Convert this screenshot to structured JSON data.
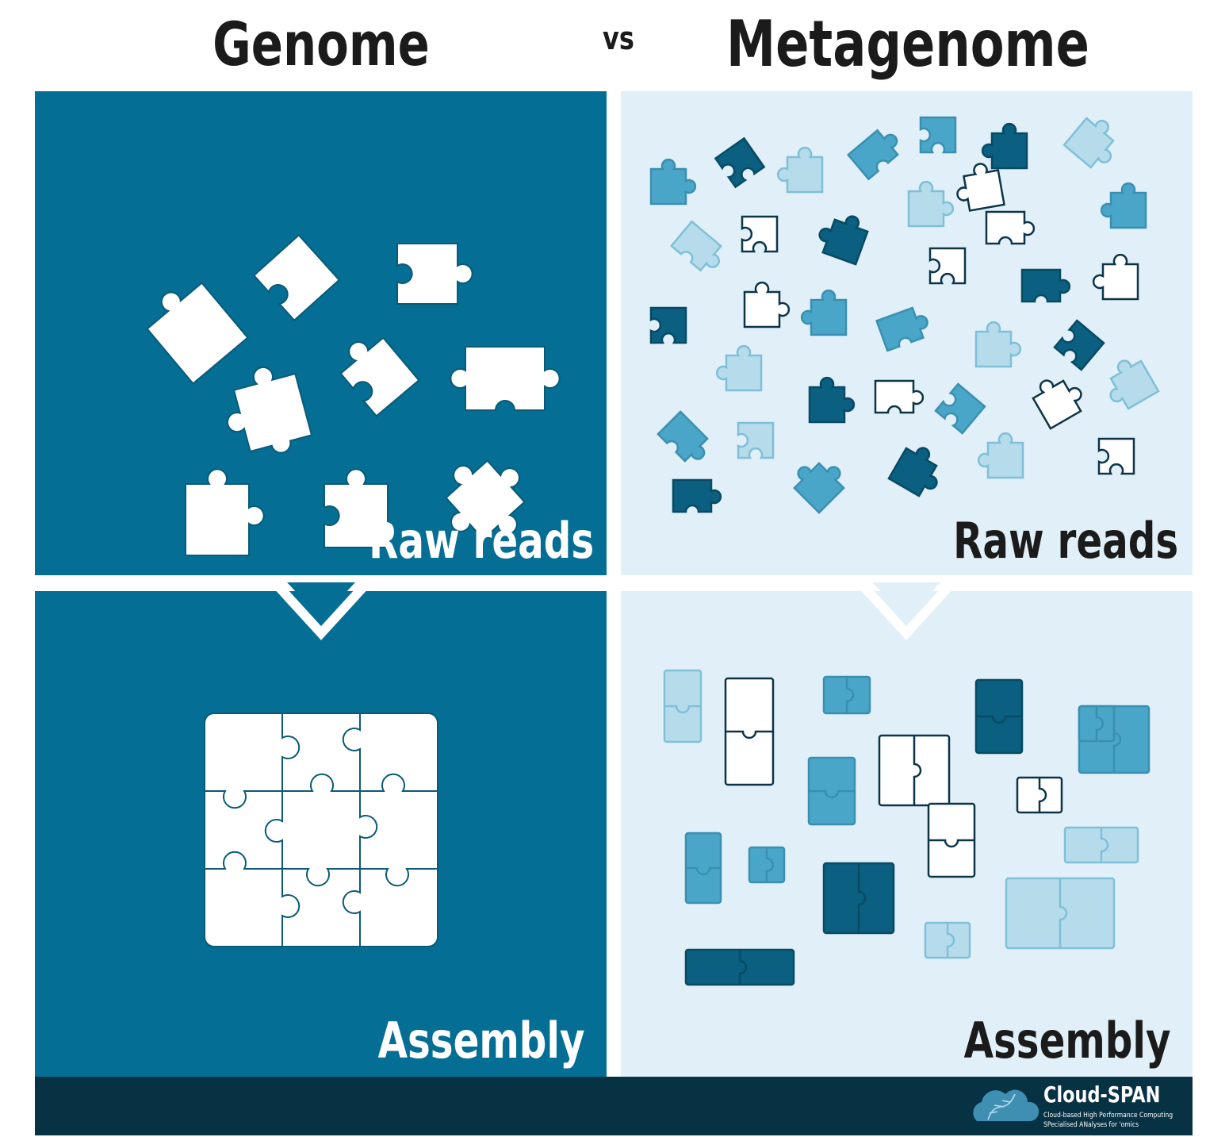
{
  "titles": {
    "left": "Genome",
    "vs": "vs",
    "right": "Metagenome"
  },
  "panels": {
    "genome_raw": {
      "label": "Raw reads"
    },
    "meta_raw": {
      "label": "Raw reads"
    },
    "genome_assembly": {
      "label": "Assembly"
    },
    "meta_assembly": {
      "label": "Assembly"
    }
  },
  "footer": {
    "brand": "Cloud-SPAN",
    "line1": "Cloud-based High Performance Computing",
    "line2": "SPecialised ANalyses for 'omics"
  },
  "colors": {
    "dark_blue": "#046e94",
    "light_bg": "#e1f0f8",
    "footer": "#073243",
    "mid_blue": "#4aa6c8",
    "pale_blue": "#b6dcec",
    "navy": "#0b5f80"
  },
  "icons": [
    "puzzle-piece-icon",
    "cloud-icon",
    "dna-icon"
  ]
}
